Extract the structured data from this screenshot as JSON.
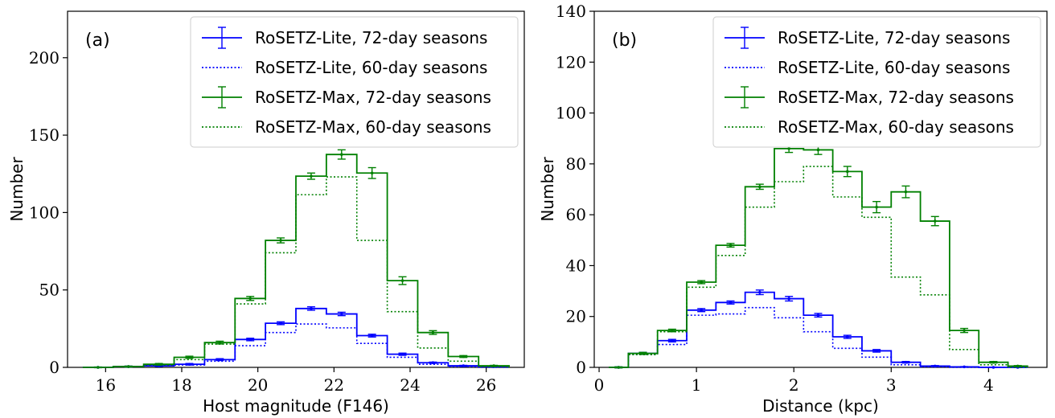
{
  "chart_data": [
    {
      "type": "line",
      "panel": "(a)",
      "xlabel": "Host magnitude (F146)",
      "ylabel": "Number",
      "xlim": [
        15.0,
        27.0
      ],
      "ylim": [
        0,
        230
      ],
      "xticks": [
        16,
        18,
        20,
        22,
        24,
        26
      ],
      "yticks": [
        0,
        50,
        100,
        150,
        200
      ],
      "grid": false,
      "legend_position": "top-right",
      "bin_edges": [
        15.4,
        16.2,
        17.0,
        17.8,
        18.6,
        19.4,
        20.2,
        21.0,
        21.8,
        22.6,
        23.4,
        24.2,
        25.0,
        25.8,
        26.6
      ],
      "series": [
        {
          "name": "RoSETZ-Lite, 72-day seasons",
          "color": "#0000ff",
          "style": "solid",
          "errorbars": true,
          "values": [
            0,
            0.5,
            1,
            2,
            5,
            18,
            28.5,
            38,
            34.5,
            20.5,
            8.5,
            3,
            1,
            0.5
          ],
          "errors": [
            0.2,
            0.3,
            0.4,
            0.5,
            0.6,
            0.8,
            0.9,
            1.1,
            1.1,
            0.9,
            0.7,
            0.4,
            0.3,
            0.2
          ]
        },
        {
          "name": "RoSETZ-Lite, 60-day seasons",
          "color": "#0000ff",
          "style": "dotted",
          "errorbars": false,
          "values": [
            0,
            0.5,
            1,
            1.5,
            4,
            14,
            22.5,
            28,
            25.5,
            15.5,
            6.5,
            2,
            0.5,
            0
          ]
        },
        {
          "name": "RoSETZ-Max, 72-day seasons",
          "color": "#008000",
          "style": "solid",
          "errorbars": true,
          "values": [
            0,
            0.5,
            2,
            6.5,
            16,
            44.5,
            82,
            123.5,
            137.5,
            125.5,
            56,
            22.5,
            7,
            1
          ],
          "errors": [
            0.2,
            0.3,
            0.5,
            0.7,
            0.9,
            1.3,
            1.6,
            2.0,
            3.0,
            3.5,
            2.5,
            1.2,
            0.6,
            0.3
          ]
        },
        {
          "name": "RoSETZ-Max, 60-day seasons",
          "color": "#008000",
          "style": "dotted",
          "errorbars": false,
          "values": [
            0,
            0.5,
            1.5,
            5,
            15,
            41,
            74,
            111.5,
            123,
            82,
            36,
            12.5,
            4,
            0.5
          ]
        }
      ]
    },
    {
      "type": "line",
      "panel": "(b)",
      "xlabel": "Distance (kpc)",
      "ylabel": "Number",
      "xlim": [
        -0.05,
        4.6
      ],
      "ylim": [
        0,
        140
      ],
      "xticks": [
        0,
        1,
        2,
        3,
        4
      ],
      "yticks": [
        0,
        20,
        40,
        60,
        80,
        100,
        120,
        140
      ],
      "grid": false,
      "legend_position": "top-right",
      "bin_edges": [
        0.1,
        0.3,
        0.6,
        0.9,
        1.2,
        1.5,
        1.8,
        2.1,
        2.4,
        2.7,
        3.0,
        3.3,
        3.6,
        3.9,
        4.2,
        4.4
      ],
      "series": [
        {
          "name": "RoSETZ-Lite, 72-day seasons",
          "color": "#0000ff",
          "style": "solid",
          "errorbars": true,
          "values": [
            0,
            5.5,
            10.5,
            22.5,
            25.5,
            29.5,
            27,
            20.5,
            12,
            6.5,
            2,
            0.5,
            0.2,
            0,
            0
          ],
          "errors": [
            0.2,
            0.4,
            0.5,
            0.6,
            0.6,
            0.9,
            0.9,
            0.7,
            0.6,
            0.5,
            0.3,
            0.2,
            0.1,
            0.1,
            0.1
          ]
        },
        {
          "name": "RoSETZ-Lite, 60-day seasons",
          "color": "#0000ff",
          "style": "dotted",
          "errorbars": false,
          "values": [
            0,
            5,
            9,
            20.5,
            21,
            23.5,
            19.5,
            14,
            7.5,
            4,
            1,
            0.2,
            0,
            0,
            0
          ]
        },
        {
          "name": "RoSETZ-Max, 72-day seasons",
          "color": "#008000",
          "style": "solid",
          "errorbars": true,
          "values": [
            0,
            5.5,
            14.5,
            33.5,
            48,
            71,
            86,
            85.5,
            77,
            63,
            69,
            57.5,
            14.5,
            2,
            0.5
          ],
          "errors": [
            0.2,
            0.4,
            0.5,
            0.6,
            0.7,
            1.0,
            1.5,
            1.8,
            2.0,
            2.2,
            2.3,
            1.8,
            0.8,
            0.3,
            0.2
          ]
        },
        {
          "name": "RoSETZ-Max, 60-day seasons",
          "color": "#008000",
          "style": "dotted",
          "errorbars": false,
          "values": [
            0,
            5,
            14,
            31.5,
            44,
            63,
            73,
            79,
            67,
            59,
            35.5,
            28.5,
            7,
            1,
            0
          ]
        }
      ]
    }
  ]
}
